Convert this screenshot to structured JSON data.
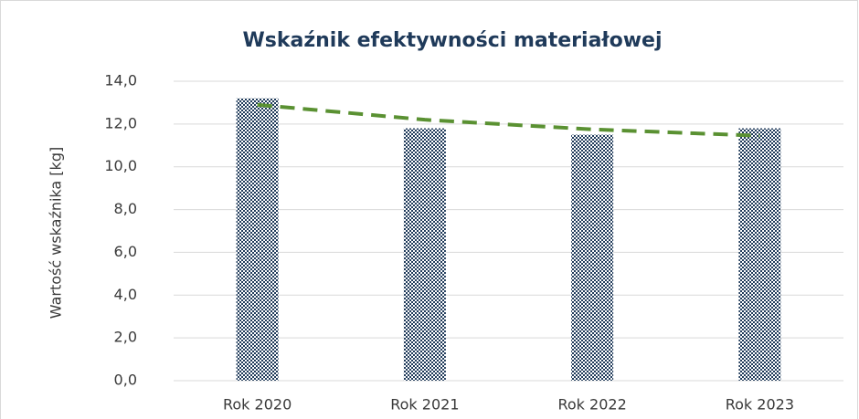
{
  "chart_data": {
    "type": "bar",
    "title": "Wskaźnik efektywności materiałowej",
    "y_axis_label": "Wartość wskaźnika [kg]",
    "categories": [
      "Rok 2020",
      "Rok 2021",
      "Rok 2022",
      "Rok 2023"
    ],
    "values": [
      13.2,
      11.8,
      11.5,
      11.8
    ],
    "color": "#1f3a5a",
    "trendline": {
      "color": "#5a9132",
      "values": [
        12.9,
        12.2,
        11.75,
        11.45
      ]
    },
    "ylim": [
      0,
      14
    ],
    "yticks": [
      {
        "value": 0,
        "label": "0,0"
      },
      {
        "value": 2,
        "label": "2,0"
      },
      {
        "value": 4,
        "label": "4,0"
      },
      {
        "value": 6,
        "label": "6,0"
      },
      {
        "value": 8,
        "label": "8,0"
      },
      {
        "value": 10,
        "label": "10,0"
      },
      {
        "value": 12,
        "label": "12,0"
      },
      {
        "value": 14,
        "label": "14,0"
      }
    ],
    "grid": true
  }
}
